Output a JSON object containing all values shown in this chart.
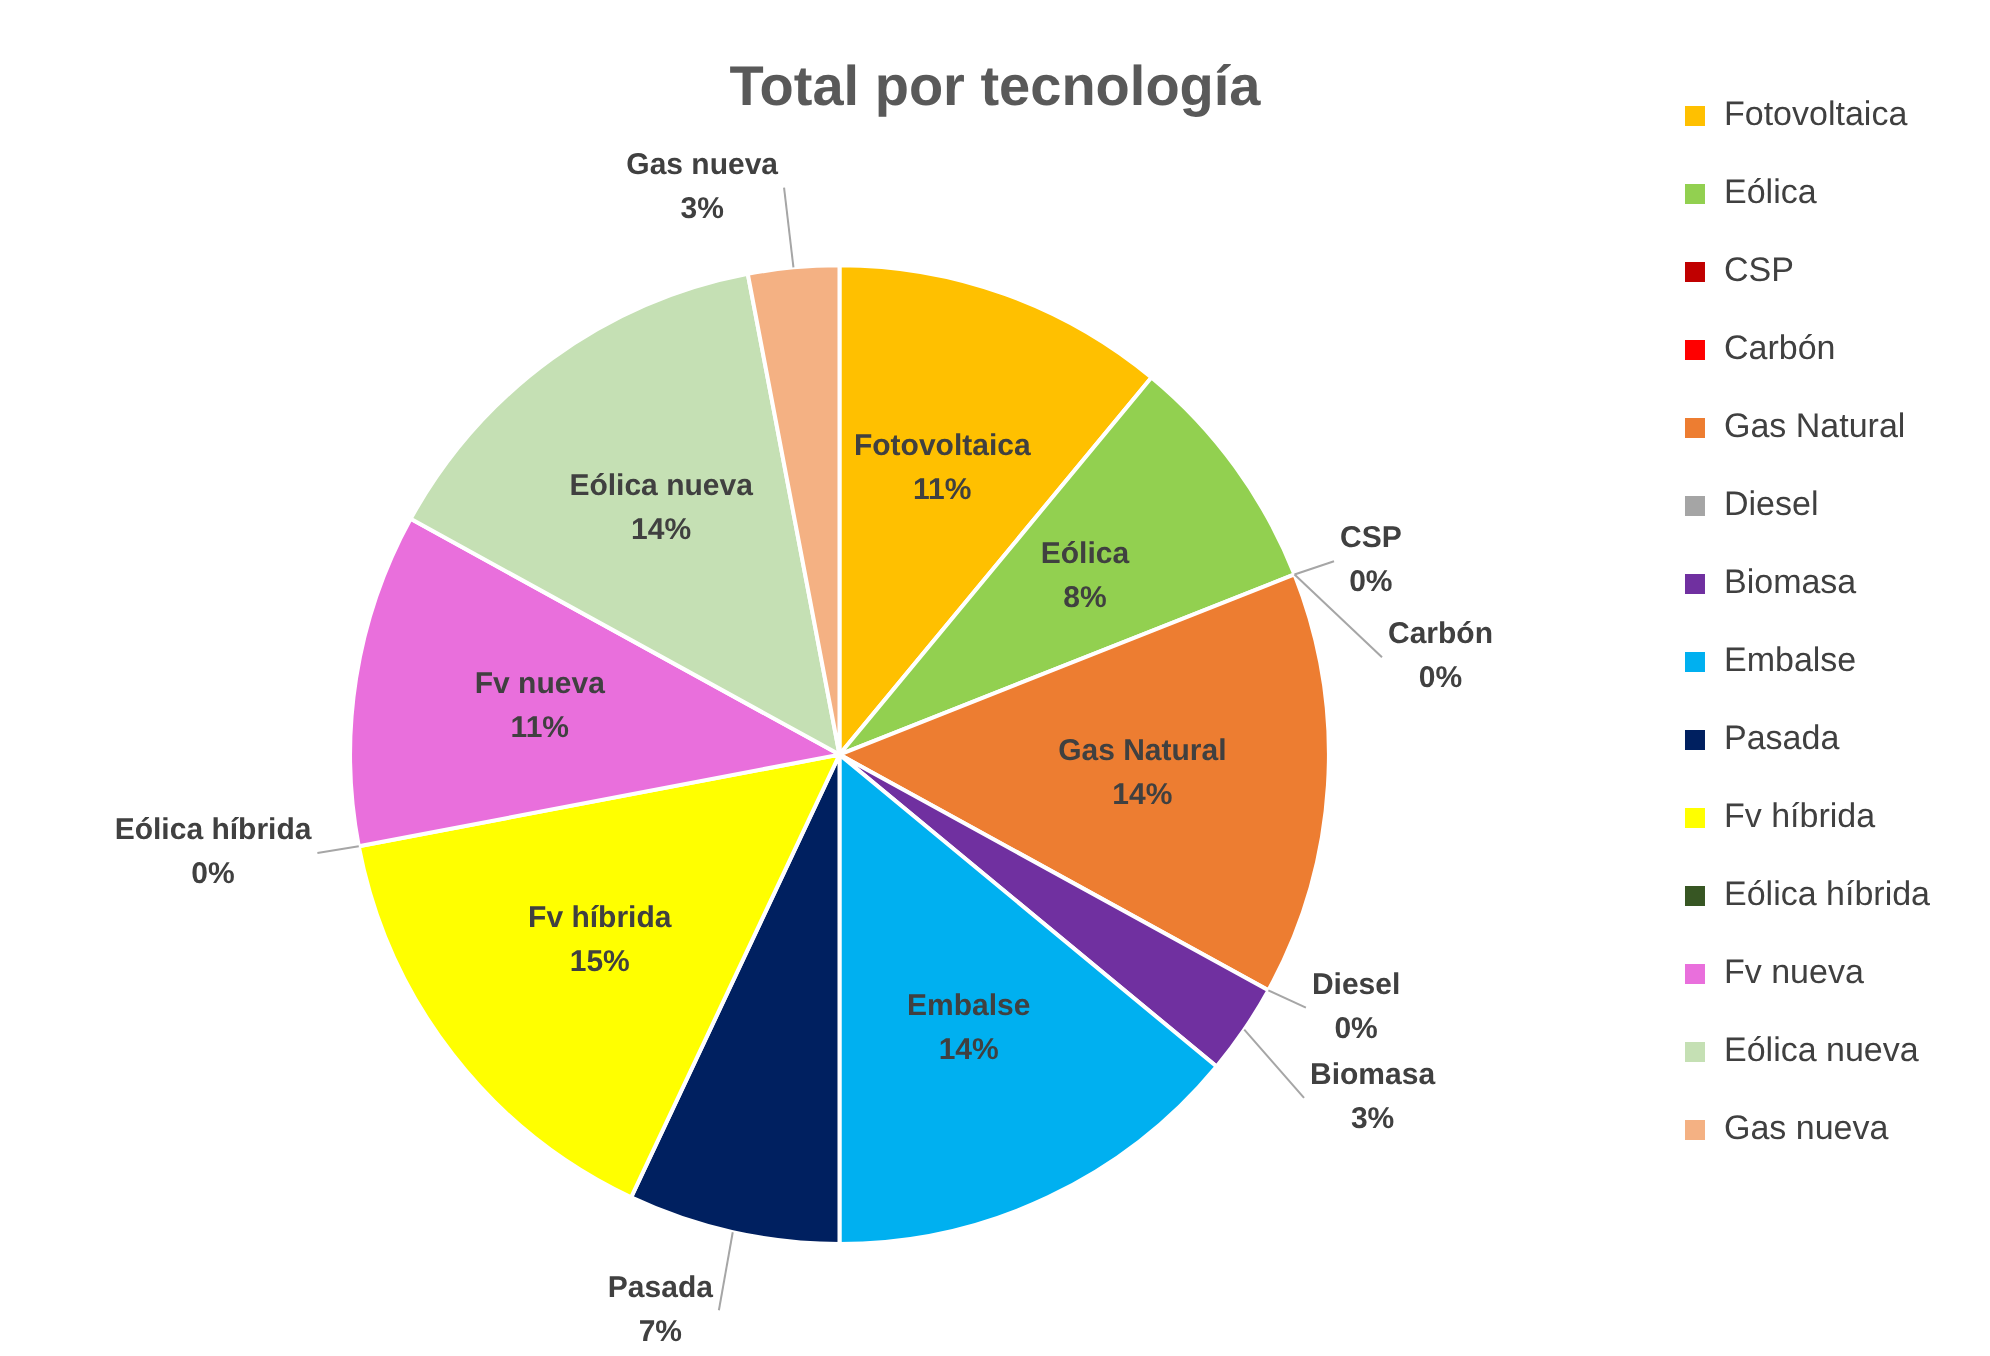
{
  "chart_data": {
    "type": "pie",
    "title": "Total por tecnología",
    "categories": [
      "Fotovoltaica",
      "Eólica",
      "CSP",
      "Carbón",
      "Gas Natural",
      "Diesel",
      "Biomasa",
      "Embalse",
      "Pasada",
      "Fv híbrida",
      "Eólica híbrida",
      "Fv nueva",
      "Eólica nueva",
      "Gas nueva"
    ],
    "values": [
      11,
      8,
      0,
      0,
      14,
      0,
      3,
      14,
      7,
      15,
      0,
      11,
      14,
      3
    ],
    "value_labels": [
      "11%",
      "8%",
      "0%",
      "0%",
      "14%",
      "0%",
      "3%",
      "14%",
      "7%",
      "15%",
      "0%",
      "11%",
      "14%",
      "3%"
    ],
    "colors": [
      "#ffc000",
      "#92d050",
      "#c00000",
      "#ff0000",
      "#ed7d31",
      "#a5a5a5",
      "#7030a0",
      "#00b0f0",
      "#002060",
      "#ffff00",
      "#375623",
      "#e96fdc",
      "#c5e0b4",
      "#f4b183"
    ],
    "legend": "right"
  }
}
